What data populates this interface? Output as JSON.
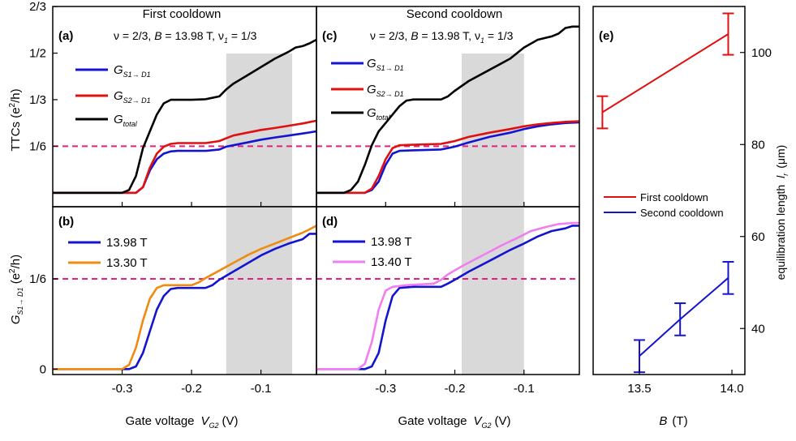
{
  "chart_data": [
    {
      "type": "line",
      "panel": "(a)",
      "column_title": "First cooldown",
      "annotation": {
        "nu": "ν = 2/3",
        "b": "B = 13.98 T",
        "nu1": "ν1 = 1/3"
      },
      "ylabel": "TTCs (e²/h)",
      "yticks": [
        "2/3",
        "1/2",
        "1/3",
        "1/6"
      ],
      "ylim": [
        -0.05,
        0.667
      ],
      "xlim": [
        -0.4,
        -0.02
      ],
      "dashed_reference": 0.1667,
      "shaded_region": [
        -0.15,
        -0.055
      ],
      "series": [
        {
          "name": "G S1→D1",
          "color": "#1414d0",
          "x": [
            -0.4,
            -0.28,
            -0.27,
            -0.26,
            -0.25,
            -0.24,
            -0.23,
            -0.22,
            -0.21,
            -0.18,
            -0.16,
            -0.15,
            -0.14,
            -0.12,
            -0.1,
            -0.08,
            -0.06,
            -0.04,
            -0.02
          ],
          "y": [
            0,
            0,
            0.02,
            0.08,
            0.12,
            0.14,
            0.148,
            0.15,
            0.15,
            0.15,
            0.155,
            0.165,
            0.17,
            0.18,
            0.19,
            0.198,
            0.205,
            0.212,
            0.22
          ]
        },
        {
          "name": "G S2→D1",
          "color": "#e01010",
          "x": [
            -0.4,
            -0.28,
            -0.27,
            -0.26,
            -0.25,
            -0.24,
            -0.23,
            -0.22,
            -0.21,
            -0.18,
            -0.16,
            -0.15,
            -0.14,
            -0.12,
            -0.1,
            -0.08,
            -0.06,
            -0.04,
            -0.02
          ],
          "y": [
            0,
            0,
            0.02,
            0.09,
            0.14,
            0.165,
            0.175,
            0.178,
            0.178,
            0.178,
            0.185,
            0.195,
            0.205,
            0.215,
            0.225,
            0.232,
            0.24,
            0.248,
            0.258
          ]
        },
        {
          "name": "G total",
          "color": "#000000",
          "x": [
            -0.4,
            -0.3,
            -0.29,
            -0.28,
            -0.27,
            -0.26,
            -0.25,
            -0.24,
            -0.23,
            -0.22,
            -0.2,
            -0.18,
            -0.16,
            -0.15,
            -0.14,
            -0.12,
            -0.1,
            -0.08,
            -0.06,
            -0.05,
            -0.04,
            -0.03,
            -0.02
          ],
          "y": [
            0,
            0,
            0.01,
            0.06,
            0.16,
            0.22,
            0.28,
            0.32,
            0.333,
            0.333,
            0.333,
            0.335,
            0.345,
            0.37,
            0.39,
            0.42,
            0.45,
            0.48,
            0.505,
            0.52,
            0.525,
            0.535,
            0.548
          ]
        }
      ]
    },
    {
      "type": "line",
      "panel": "(c)",
      "column_title": "Second cooldown",
      "annotation": {
        "nu": "ν = 2/3",
        "b": "B = 13.98 T",
        "nu1": "ν1 = 1/3"
      },
      "ylim": [
        -0.05,
        0.667
      ],
      "xlim": [
        -0.4,
        -0.02
      ],
      "dashed_reference": 0.1667,
      "shaded_region": [
        -0.19,
        -0.1
      ],
      "series": [
        {
          "name": "G S1→D1",
          "color": "#1414d0",
          "x": [
            -0.4,
            -0.33,
            -0.32,
            -0.31,
            -0.3,
            -0.29,
            -0.28,
            -0.26,
            -0.22,
            -0.21,
            -0.2,
            -0.18,
            -0.15,
            -0.12,
            -0.1,
            -0.08,
            -0.06,
            -0.04,
            -0.02
          ],
          "y": [
            0,
            0,
            0.01,
            0.04,
            0.1,
            0.14,
            0.15,
            0.152,
            0.155,
            0.16,
            0.165,
            0.18,
            0.2,
            0.215,
            0.228,
            0.238,
            0.245,
            0.25,
            0.252
          ]
        },
        {
          "name": "G S2→D1",
          "color": "#e01010",
          "x": [
            -0.4,
            -0.33,
            -0.32,
            -0.31,
            -0.3,
            -0.29,
            -0.28,
            -0.26,
            -0.22,
            -0.21,
            -0.2,
            -0.18,
            -0.15,
            -0.12,
            -0.1,
            -0.08,
            -0.06,
            -0.04,
            -0.02
          ],
          "y": [
            0,
            0,
            0.015,
            0.06,
            0.12,
            0.16,
            0.17,
            0.172,
            0.175,
            0.18,
            0.185,
            0.2,
            0.215,
            0.228,
            0.238,
            0.245,
            0.25,
            0.254,
            0.256
          ]
        },
        {
          "name": "G total",
          "color": "#000000",
          "x": [
            -0.4,
            -0.36,
            -0.35,
            -0.34,
            -0.33,
            -0.32,
            -0.31,
            -0.3,
            -0.29,
            -0.28,
            -0.27,
            -0.26,
            -0.25,
            -0.22,
            -0.21,
            -0.2,
            -0.18,
            -0.15,
            -0.12,
            -0.1,
            -0.08,
            -0.06,
            -0.05,
            -0.04,
            -0.03,
            -0.02
          ],
          "y": [
            0,
            0,
            0.01,
            0.04,
            0.1,
            0.17,
            0.22,
            0.25,
            0.28,
            0.31,
            0.33,
            0.334,
            0.334,
            0.334,
            0.345,
            0.365,
            0.4,
            0.44,
            0.48,
            0.52,
            0.548,
            0.56,
            0.57,
            0.59,
            0.595,
            0.595
          ]
        }
      ]
    },
    {
      "type": "line",
      "panel": "(b)",
      "xlabel": "Gate voltage V_G2 (V)",
      "ylabel": "G S1→D1 (e²/h)",
      "yticks": [
        "1/6",
        "0"
      ],
      "xticks": [
        "-0.3",
        "-0.2",
        "-0.1"
      ],
      "ylim": [
        -0.01,
        0.3
      ],
      "xlim": [
        -0.4,
        -0.02
      ],
      "dashed_reference": 0.1667,
      "shaded_region": [
        -0.15,
        -0.055
      ],
      "series": [
        {
          "name": "13.98 T",
          "color": "#1414d0",
          "x": [
            -0.4,
            -0.29,
            -0.28,
            -0.27,
            -0.26,
            -0.25,
            -0.24,
            -0.23,
            -0.22,
            -0.2,
            -0.18,
            -0.17,
            -0.16,
            -0.14,
            -0.12,
            -0.1,
            -0.08,
            -0.06,
            -0.04,
            -0.03,
            -0.02
          ],
          "y": [
            0,
            0,
            0.005,
            0.03,
            0.07,
            0.11,
            0.135,
            0.148,
            0.15,
            0.15,
            0.15,
            0.155,
            0.165,
            0.18,
            0.195,
            0.21,
            0.222,
            0.232,
            0.24,
            0.25,
            0.25
          ]
        },
        {
          "name": "13.30 T",
          "color": "#f08a10",
          "x": [
            -0.4,
            -0.3,
            -0.29,
            -0.28,
            -0.27,
            -0.26,
            -0.25,
            -0.24,
            -0.22,
            -0.2,
            -0.19,
            -0.18,
            -0.16,
            -0.14,
            -0.12,
            -0.1,
            -0.08,
            -0.06,
            -0.04,
            -0.03,
            -0.02
          ],
          "y": [
            0,
            0,
            0.008,
            0.04,
            0.09,
            0.13,
            0.15,
            0.155,
            0.155,
            0.155,
            0.16,
            0.168,
            0.182,
            0.196,
            0.21,
            0.222,
            0.232,
            0.242,
            0.252,
            0.258,
            0.265
          ]
        }
      ]
    },
    {
      "type": "line",
      "panel": "(d)",
      "xlabel": "Gate voltage V_G2 (V)",
      "xticks": [
        "-0.3",
        "-0.2",
        "-0.1"
      ],
      "ylim": [
        -0.01,
        0.3
      ],
      "xlim": [
        -0.4,
        -0.02
      ],
      "dashed_reference": 0.1667,
      "shaded_region": [
        -0.19,
        -0.1
      ],
      "series": [
        {
          "name": "13.98 T",
          "color": "#1414d0",
          "x": [
            -0.4,
            -0.33,
            -0.32,
            -0.31,
            -0.3,
            -0.29,
            -0.28,
            -0.26,
            -0.22,
            -0.21,
            -0.2,
            -0.18,
            -0.15,
            -0.12,
            -0.1,
            -0.08,
            -0.06,
            -0.04,
            -0.03,
            -0.02
          ],
          "y": [
            0,
            0,
            0.005,
            0.03,
            0.09,
            0.135,
            0.15,
            0.152,
            0.152,
            0.158,
            0.165,
            0.18,
            0.2,
            0.22,
            0.232,
            0.245,
            0.255,
            0.26,
            0.265,
            0.265
          ]
        },
        {
          "name": "13.40 T",
          "color": "#f07ef0",
          "x": [
            -0.4,
            -0.34,
            -0.33,
            -0.32,
            -0.31,
            -0.3,
            -0.29,
            -0.27,
            -0.23,
            -0.22,
            -0.21,
            -0.19,
            -0.16,
            -0.13,
            -0.11,
            -0.09,
            -0.07,
            -0.05,
            -0.03,
            -0.02
          ],
          "y": [
            0,
            0,
            0.01,
            0.05,
            0.11,
            0.145,
            0.152,
            0.155,
            0.158,
            0.165,
            0.175,
            0.19,
            0.21,
            0.23,
            0.242,
            0.255,
            0.262,
            0.268,
            0.27,
            0.27
          ]
        }
      ]
    },
    {
      "type": "scatter",
      "panel": "(e)",
      "xlabel": "B (T)",
      "ylabel": "equilibration length  l r (μm)",
      "xticks": [
        "13.5",
        "14.0"
      ],
      "yticks": [
        "40",
        "60",
        "80",
        "100"
      ],
      "xlim": [
        13.25,
        14.07
      ],
      "ylim": [
        30,
        110
      ],
      "series": [
        {
          "name": "First cooldown",
          "color": "#e01010",
          "x": [
            13.3,
            13.98
          ],
          "y": [
            87,
            104
          ],
          "err": [
            3.5,
            4.5
          ]
        },
        {
          "name": "Second cooldown",
          "color": "#1414d0",
          "x": [
            13.5,
            13.72,
            13.98
          ],
          "y": [
            34,
            42,
            51
          ],
          "err": [
            3.5,
            3.5,
            3.5
          ]
        }
      ]
    }
  ],
  "labels": {
    "title_first": "First cooldown",
    "title_second": "Second cooldown",
    "xlabel_text": "Gate voltage",
    "xlabel_var": "V",
    "xlabel_sub": "G2",
    "xlabel_unit": "(V)",
    "blabel_var": "B",
    "blabel_unit": "(T)",
    "ttc_label": "TTCs (e",
    "ttc_sup": "2",
    "ttc_unit": "/h)",
    "g_var": "G",
    "g_sub": "S1→ D1",
    "g_unit": " (e",
    "g_sup": "2",
    "g_unit2": "/h)",
    "eq_label": "equilibration length",
    "eq_var": "l",
    "eq_sub": "r",
    "eq_unit": "(μm)",
    "legend_s1": "S1→ D1",
    "legend_s2": "S2→ D1",
    "legend_total": "total",
    "ann_nu": "ν = 2/3, ",
    "ann_b": "B",
    "ann_b_val": " = 13.98 T, ",
    "ann_nu1": "ν",
    "ann_nu1_sub": "1",
    "ann_nu1_val": " = 1/3"
  }
}
